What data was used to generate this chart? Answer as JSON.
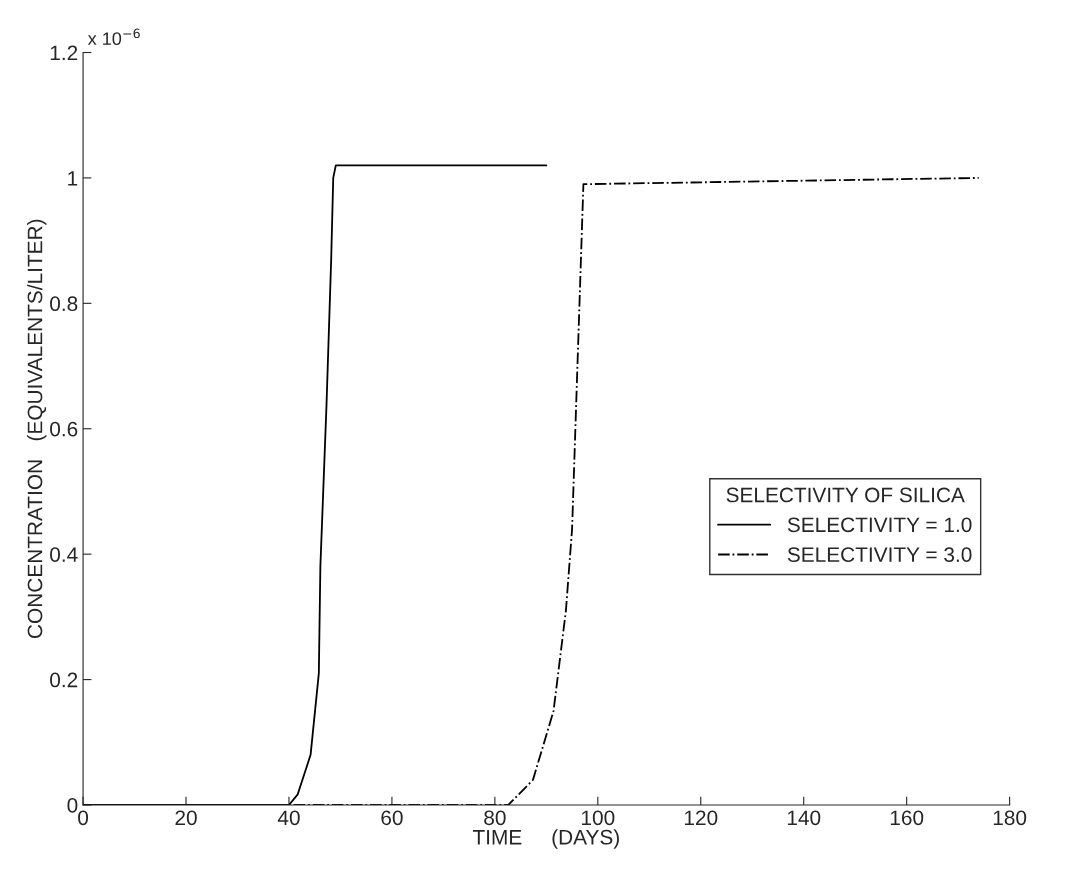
{
  "chart_data": {
    "type": "line",
    "xlabel": "TIME     (DAYS)",
    "ylabel": "CONCENTRATION   (EQUIVALENTS/LITER)",
    "legend_title": "SELECTIVITY OF SILICA",
    "legend": "right",
    "annotations": [
      "x 10$^{−6}$"
    ],
    "xlim": [
      0,
      180
    ],
    "xticks": [
      0,
      20,
      40,
      60,
      80,
      100,
      120,
      140,
      160,
      180
    ],
    "ylim": [
      0,
      1.2
    ],
    "yticks": [
      0,
      0.2,
      0.4,
      0.6,
      0.8,
      1,
      1.2
    ],
    "grid": false,
    "series": [
      {
        "name": "SELECTIVITY = 1.0",
        "color": "#000000",
        "line_style": "solid",
        "x": [
          0,
          40,
          41.7,
          44.2,
          45.8,
          46.1,
          47.3,
          48.2,
          48.6,
          49.1,
          90
        ],
        "values": [
          0,
          0,
          0.017,
          0.08,
          0.21,
          0.38,
          0.64,
          0.87,
          1.0,
          1.02,
          1.02
        ]
      },
      {
        "name": "SELECTIVITY = 3.0",
        "color": "#000000",
        "line_style": "dashdot",
        "x": [
          0,
          82.6,
          87.4,
          91.4,
          93.8,
          95.0,
          95.8,
          96.6,
          97.2,
          174
        ],
        "values": [
          0,
          0,
          0.04,
          0.15,
          0.31,
          0.44,
          0.64,
          0.84,
          0.99,
          1.0
        ]
      }
    ]
  }
}
